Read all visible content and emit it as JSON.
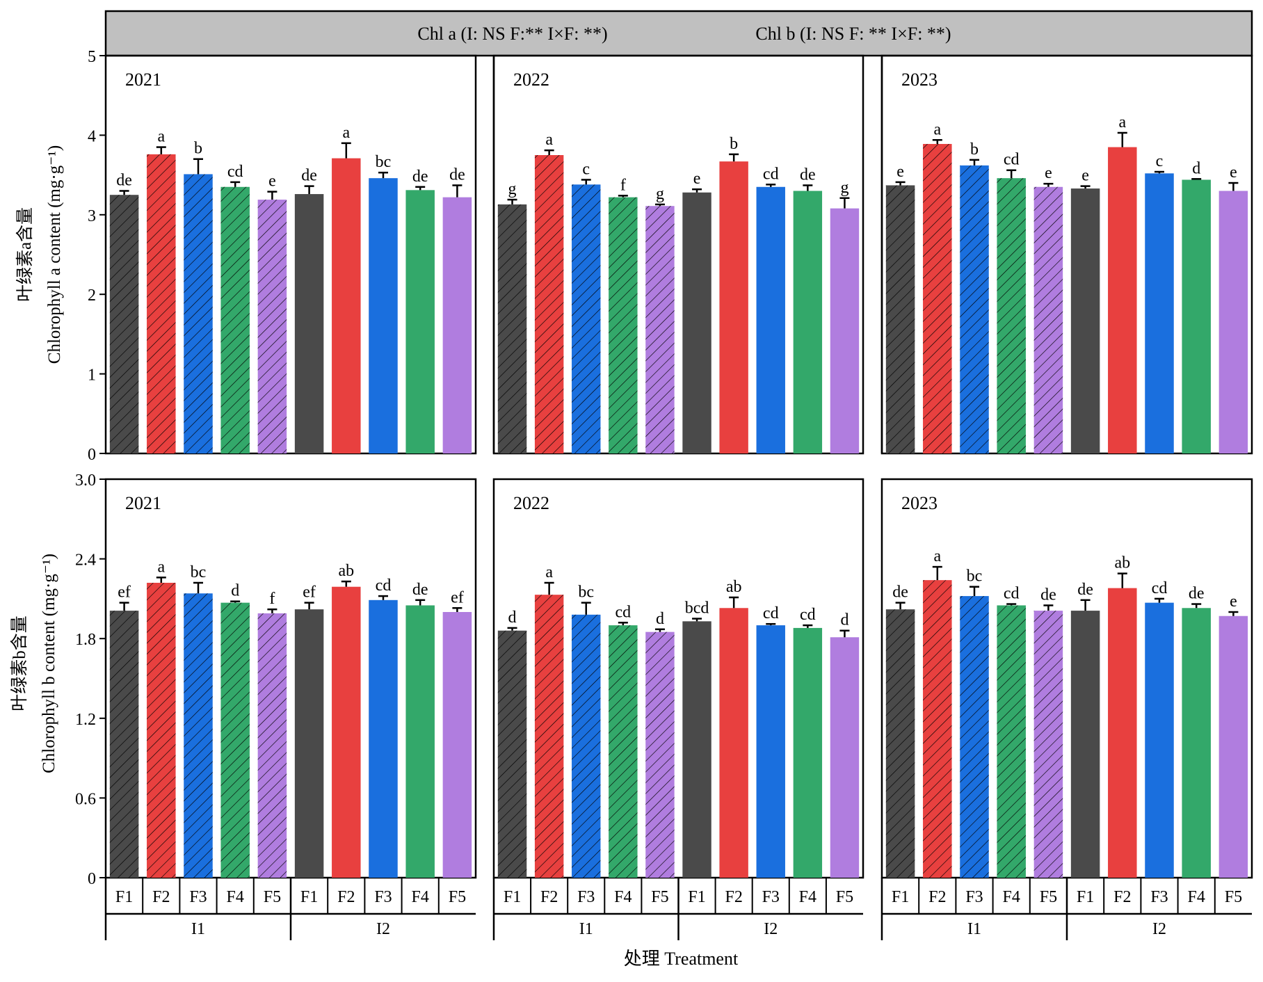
{
  "header": {
    "chl_a_note": "Chl a (I: NS F:** I×F: **)",
    "chl_b_note": "Chl b (I: NS F: ** I×F: **)"
  },
  "axes": {
    "xlabel": "处理 Treatment",
    "top_ylabel_cn": "叶绿素a含量",
    "top_ylabel_en": "Chlorophyll a content (mg·g⁻¹)",
    "bottom_ylabel_cn": "叶绿素b含量",
    "bottom_ylabel_en": "Chlorophyll b content (mg·g⁻¹)"
  },
  "treatments": [
    "F1",
    "F2",
    "F3",
    "F4",
    "F5",
    "F1",
    "F2",
    "F3",
    "F4",
    "F5"
  ],
  "groups": [
    "I1",
    "I2"
  ],
  "colors": [
    "#4a4a4a",
    "#e8403f",
    "#1a6fde",
    "#33a86a",
    "#b07ddf"
  ],
  "hatched_group": "I1",
  "chart_data": [
    {
      "type": "bar",
      "year": "2021",
      "ylim": [
        0,
        5
      ],
      "yticks": [
        "0",
        "1",
        "2",
        "3",
        "4",
        "5"
      ],
      "values": [
        3.25,
        3.76,
        3.51,
        3.35,
        3.19,
        3.26,
        3.71,
        3.46,
        3.31,
        3.22
      ],
      "errors": [
        0.05,
        0.09,
        0.19,
        0.06,
        0.1,
        0.1,
        0.19,
        0.07,
        0.04,
        0.15
      ],
      "letters": [
        "de",
        "a",
        "b",
        "cd",
        "e",
        "de",
        "a",
        "bc",
        "de",
        "de"
      ]
    },
    {
      "type": "bar",
      "year": "2022",
      "ylim": [
        0,
        5
      ],
      "yticks": [
        "0",
        "1",
        "2",
        "3",
        "4",
        "5"
      ],
      "values": [
        3.13,
        3.75,
        3.38,
        3.22,
        3.11,
        3.28,
        3.67,
        3.35,
        3.3,
        3.08
      ],
      "errors": [
        0.06,
        0.06,
        0.06,
        0.02,
        0.02,
        0.04,
        0.09,
        0.03,
        0.07,
        0.13
      ],
      "letters": [
        "g",
        "a",
        "c",
        "f",
        "g",
        "e",
        "b",
        "cd",
        "de",
        "g"
      ]
    },
    {
      "type": "bar",
      "year": "2023",
      "ylim": [
        0,
        5
      ],
      "yticks": [
        "0",
        "1",
        "2",
        "3",
        "4",
        "5"
      ],
      "values": [
        3.37,
        3.89,
        3.62,
        3.46,
        3.35,
        3.33,
        3.85,
        3.52,
        3.44,
        3.3
      ],
      "errors": [
        0.04,
        0.05,
        0.07,
        0.1,
        0.04,
        0.03,
        0.18,
        0.02,
        0.01,
        0.1
      ],
      "letters": [
        "e",
        "a",
        "b",
        "cd",
        "e",
        "e",
        "a",
        "c",
        "d",
        "e"
      ]
    },
    {
      "type": "bar",
      "year": "2021",
      "ylim": [
        0,
        3
      ],
      "yticks": [
        "0",
        "0.6",
        "1.2",
        "1.8",
        "2.4",
        "3.0"
      ],
      "values": [
        2.01,
        2.22,
        2.14,
        2.07,
        1.99,
        2.02,
        2.19,
        2.09,
        2.05,
        2.0
      ],
      "errors": [
        0.06,
        0.04,
        0.08,
        0.01,
        0.03,
        0.05,
        0.04,
        0.03,
        0.04,
        0.03
      ],
      "letters": [
        "ef",
        "a",
        "bc",
        "d",
        "f",
        "ef",
        "ab",
        "cd",
        "de",
        "ef"
      ]
    },
    {
      "type": "bar",
      "year": "2022",
      "ylim": [
        0,
        3
      ],
      "yticks": [
        "0",
        "0.6",
        "1.2",
        "1.8",
        "2.4",
        "3.0"
      ],
      "values": [
        1.86,
        2.13,
        1.98,
        1.9,
        1.85,
        1.93,
        2.03,
        1.9,
        1.88,
        1.81
      ],
      "errors": [
        0.02,
        0.09,
        0.09,
        0.02,
        0.02,
        0.02,
        0.08,
        0.01,
        0.02,
        0.05
      ],
      "letters": [
        "d",
        "a",
        "bc",
        "cd",
        "d",
        "bcd",
        "ab",
        "cd",
        "cd",
        "d"
      ]
    },
    {
      "type": "bar",
      "year": "2023",
      "ylim": [
        0,
        3
      ],
      "yticks": [
        "0",
        "0.6",
        "1.2",
        "1.8",
        "2.4",
        "3.0"
      ],
      "values": [
        2.02,
        2.24,
        2.12,
        2.05,
        2.01,
        2.01,
        2.18,
        2.07,
        2.03,
        1.97
      ],
      "errors": [
        0.05,
        0.1,
        0.07,
        0.01,
        0.04,
        0.08,
        0.11,
        0.03,
        0.03,
        0.03
      ],
      "letters": [
        "de",
        "a",
        "bc",
        "cd",
        "de",
        "de",
        "ab",
        "cd",
        "de",
        "e"
      ]
    }
  ]
}
